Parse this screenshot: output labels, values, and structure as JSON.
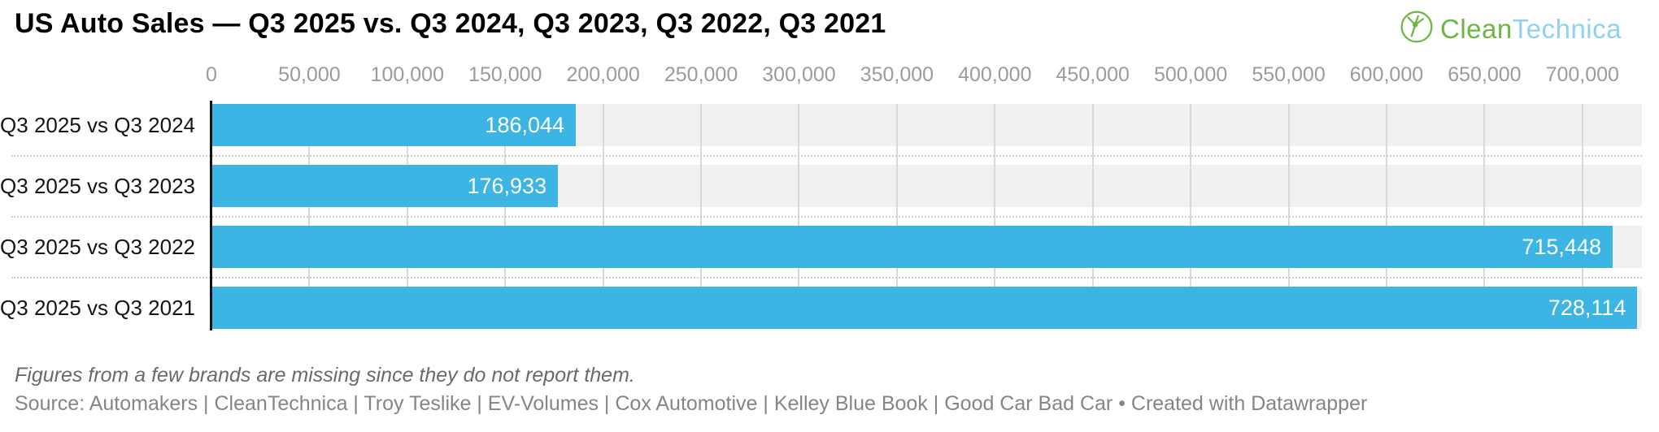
{
  "header": {
    "title": "US Auto Sales — Q3 2025 vs. Q3 2024, Q3 2023, Q3 2022, Q3 2021",
    "logo": {
      "clean": "Clean",
      "technica": "Technica",
      "green": "#6cb644",
      "blue": "#8fd2f0"
    }
  },
  "chart_data": {
    "type": "bar",
    "orientation": "horizontal",
    "title": "US Auto Sales — Q3 2025 vs. Q3 2024, Q3 2023, Q3 2022, Q3 2021",
    "categories": [
      "Q3 2025 vs Q3 2024",
      "Q3 2025 vs Q3 2023",
      "Q3 2025 vs Q3 2022",
      "Q3 2025 vs Q3 2021"
    ],
    "values": [
      186044,
      176933,
      715448,
      728114
    ],
    "value_labels": [
      "186,044",
      "176,933",
      "715,448",
      "728,114"
    ],
    "xlim": [
      0,
      730400
    ],
    "x_tick_values": [
      0,
      50000,
      100000,
      150000,
      200000,
      250000,
      300000,
      350000,
      400000,
      450000,
      500000,
      550000,
      600000,
      650000,
      700000
    ],
    "x_tick_labels": [
      "0",
      "50,000",
      "100,000",
      "150,000",
      "200,000",
      "250,000",
      "300,000",
      "350,000",
      "400,000",
      "450,000",
      "500,000",
      "550,000",
      "600,000",
      "650,000",
      "700,000"
    ],
    "bar_color": "#3cb4e4",
    "row_bg_color": "#f1f1f1",
    "gridline_color": "#d9d9d9",
    "grid": true,
    "legend": false
  },
  "footer": {
    "note": "Figures from a few brands are missing since they do not report them.",
    "source": "Source: Automakers | CleanTechnica | Troy Teslike | EV-Volumes | Cox Automotive | Kelley Blue Book | Good Car Bad Car • Created with Datawrapper"
  }
}
